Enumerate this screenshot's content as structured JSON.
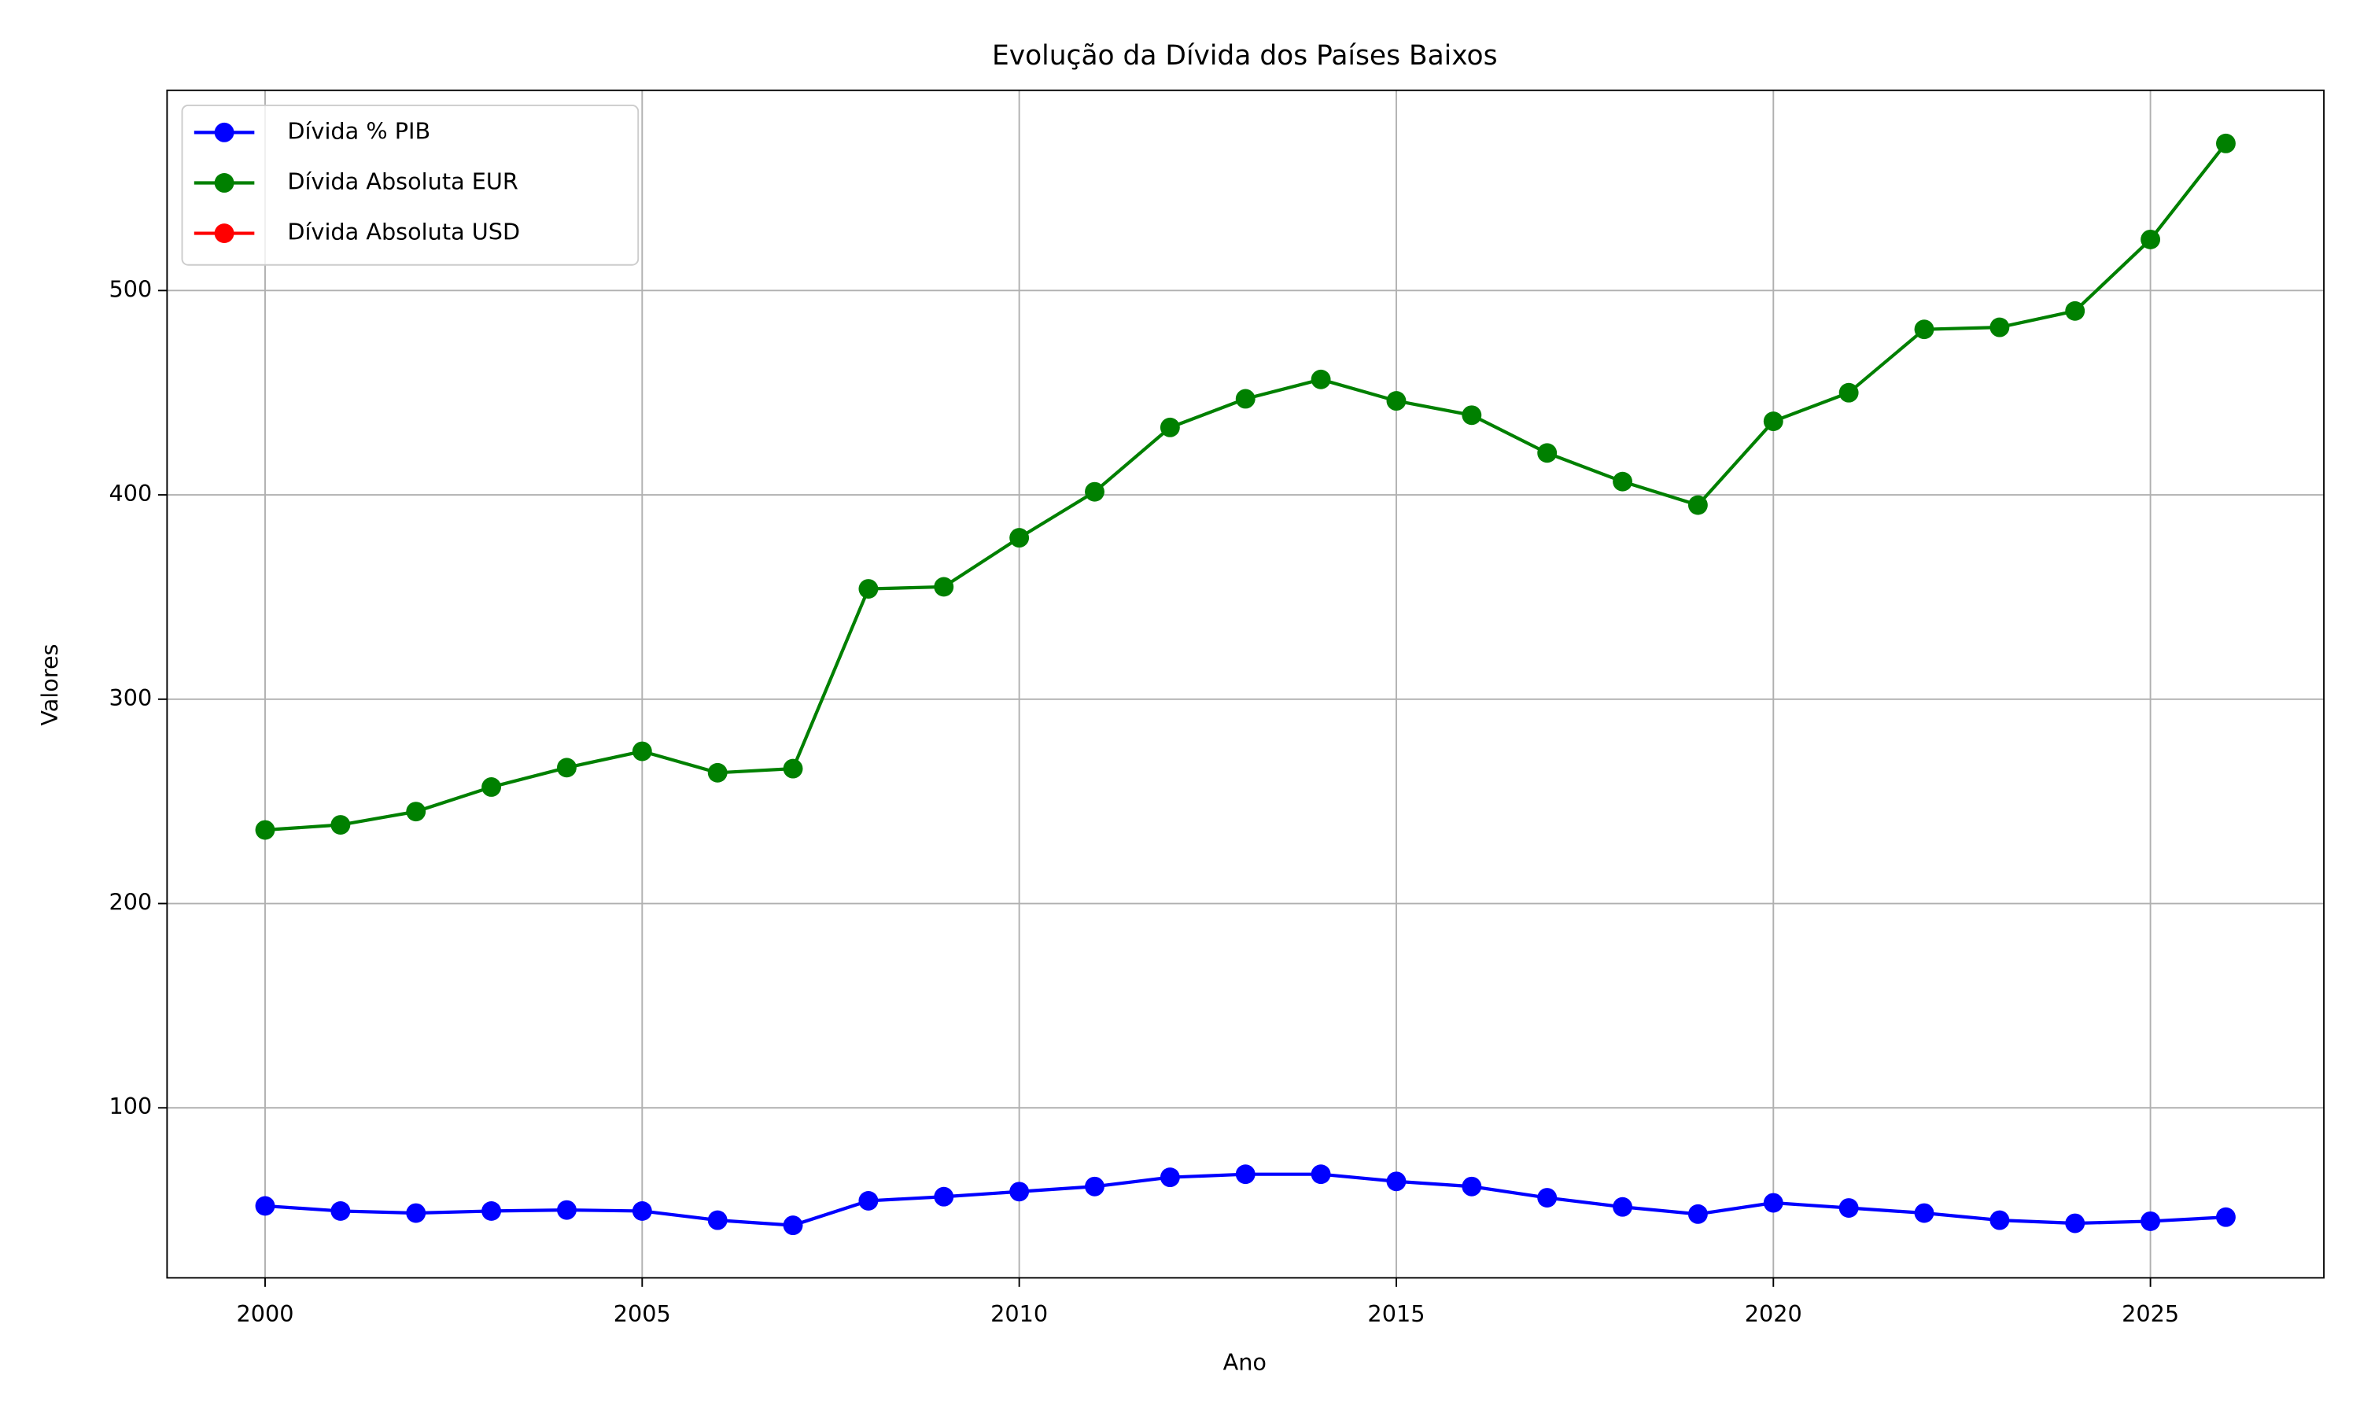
{
  "chart_data": {
    "type": "line",
    "title": "Evolução da Dívida dos Países Baixos",
    "xlabel": "Ano",
    "ylabel": "Valores",
    "x": [
      2000,
      2001,
      2002,
      2003,
      2004,
      2005,
      2006,
      2007,
      2008,
      2009,
      2010,
      2011,
      2012,
      2013,
      2014,
      2015,
      2016,
      2017,
      2018,
      2019,
      2020,
      2021,
      2022,
      2023,
      2024,
      2025,
      2026
    ],
    "series": [
      {
        "name": "Dívida % PIB",
        "color": "#0000ff",
        "values": [
          52,
          49.5,
          48.5,
          49.5,
          50,
          49.5,
          45,
          42.5,
          54.5,
          56.5,
          59,
          61.5,
          66,
          67.5,
          67.5,
          64,
          61.5,
          56,
          51.5,
          48,
          53.5,
          51,
          48.5,
          45,
          43.5,
          44.5,
          46.5
        ]
      },
      {
        "name": "Dívida Absoluta EUR",
        "color": "#008000",
        "values": [
          236,
          238.5,
          245,
          257,
          266.5,
          274.5,
          264,
          266,
          354,
          355,
          379,
          401.5,
          433,
          447,
          456.5,
          446,
          439,
          420.5,
          406.5,
          395,
          436,
          450,
          481,
          482,
          490,
          525,
          572
        ]
      },
      {
        "name": "Dívida Absoluta USD",
        "color": "#ff0000",
        "values": [
          null,
          null,
          null,
          null,
          null,
          null,
          null,
          null,
          null,
          null,
          null,
          null,
          null,
          null,
          null,
          null,
          null,
          null,
          null,
          null,
          null,
          null,
          null,
          null,
          null,
          null,
          null
        ]
      }
    ],
    "xlim": [
      1998.7,
      2027.3
    ],
    "ylim": [
      16.8,
      598
    ],
    "xticks": [
      2000,
      2005,
      2010,
      2015,
      2020,
      2025
    ],
    "yticks": [
      100,
      200,
      300,
      400,
      500
    ],
    "grid": true,
    "legend": "upper left"
  }
}
